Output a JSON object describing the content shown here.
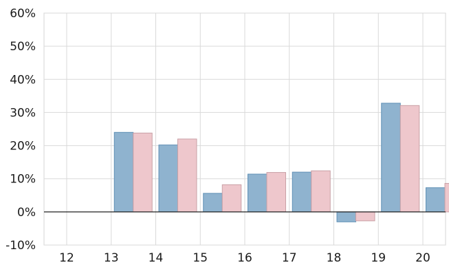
{
  "chart_data": {
    "type": "bar",
    "categories": [
      "12",
      "13",
      "14",
      "15",
      "16",
      "17",
      "18",
      "19",
      "20"
    ],
    "series": [
      {
        "values": [
          null,
          24.0,
          20.2,
          5.6,
          11.4,
          12.0,
          -3.0,
          32.8,
          7.3
        ],
        "color": "#8fb3cf"
      },
      {
        "values": [
          null,
          23.8,
          22.0,
          8.2,
          11.9,
          12.4,
          -2.7,
          32.1,
          8.6
        ],
        "color": "#eec7cc"
      }
    ],
    "yticks": [
      {
        "value": 60,
        "label": "60%"
      },
      {
        "value": 50,
        "label": "50%"
      },
      {
        "value": 40,
        "label": "40%"
      },
      {
        "value": 30,
        "label": "30%"
      },
      {
        "value": 20,
        "label": "20%"
      },
      {
        "value": 10,
        "label": "10%"
      },
      {
        "value": 0,
        "label": "0%"
      },
      {
        "value": -10,
        "label": "-10%"
      }
    ],
    "ylim": [
      -10,
      60
    ],
    "grid": true,
    "title": "",
    "xlabel": "",
    "ylabel": ""
  }
}
